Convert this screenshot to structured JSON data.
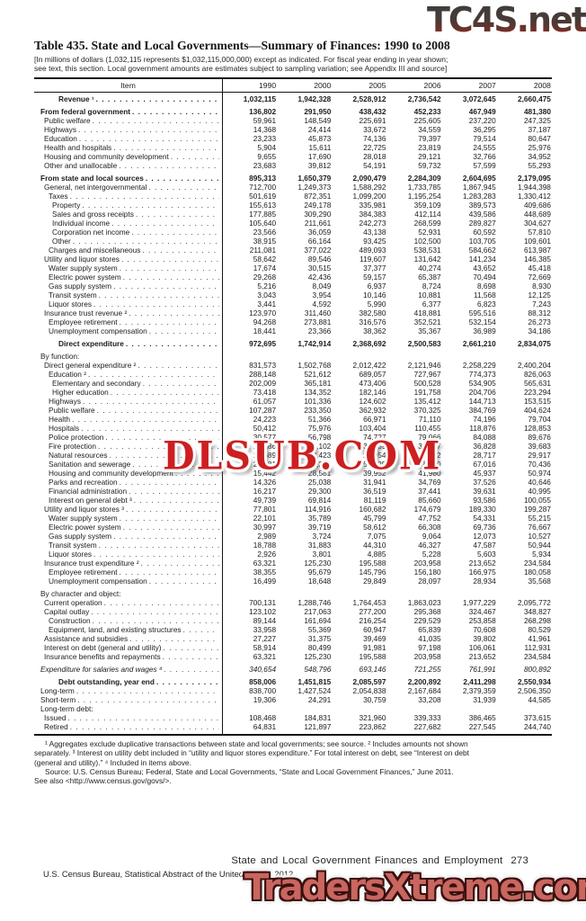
{
  "watermarks": {
    "top": "TC4S.net",
    "middle": "DLSUB.COM",
    "bottom": "TradersXtreme.com"
  },
  "title": "Table 435. State and Local Governments—Summary of Finances: 1990 to 2008",
  "note_lines": [
    "[In millions of dollars (1,032,115 represents $1,032,115,000,000) except as indicated. For fiscal year ending in year shown;",
    "see text, this section. Local government amounts are estimates subject to sampling variation; see Appendix III and source]"
  ],
  "table": {
    "item_header": "Item",
    "years": [
      "1990",
      "2000",
      "2005",
      "2006",
      "2007",
      "2008"
    ],
    "rows": [
      {
        "label": "Revenue ¹",
        "ind": 4,
        "style": "total",
        "values": [
          "1,032,115",
          "1,942,328",
          "2,528,912",
          "2,736,542",
          "3,072,645",
          "2,660,475"
        ]
      },
      {
        "label": "From federal government",
        "ind": 0,
        "style": "head",
        "gap": true,
        "values": [
          "136,802",
          "291,950",
          "438,432",
          "452,233",
          "467,949",
          "481,380"
        ]
      },
      {
        "label": "Public welfare",
        "ind": 1,
        "values": [
          "59,961",
          "148,549",
          "225,691",
          "225,605",
          "237,220",
          "247,325"
        ]
      },
      {
        "label": "Highways",
        "ind": 1,
        "values": [
          "14,368",
          "24,414",
          "33,672",
          "34,559",
          "36,295",
          "37,187"
        ]
      },
      {
        "label": "Education",
        "ind": 1,
        "values": [
          "23,233",
          "45,873",
          "74,136",
          "79,397",
          "79,514",
          "80,647"
        ]
      },
      {
        "label": "Health and hospitals",
        "ind": 1,
        "values": [
          "5,904",
          "15,611",
          "22,725",
          "23,819",
          "24,555",
          "25,976"
        ]
      },
      {
        "label": "Housing and community development",
        "ind": 1,
        "values": [
          "9,655",
          "17,690",
          "28,018",
          "29,121",
          "32,766",
          "34,952"
        ]
      },
      {
        "label": "Other and unallocable",
        "ind": 1,
        "values": [
          "23,683",
          "39,812",
          "54,191",
          "59,732",
          "57,599",
          "55,293"
        ]
      },
      {
        "label": "From state and local sources",
        "ind": 0,
        "style": "head",
        "gap": true,
        "values": [
          "895,313",
          "1,650,379",
          "2,090,479",
          "2,284,309",
          "2,604,695",
          "2,179,095"
        ]
      },
      {
        "label": "General, net intergovernmental",
        "ind": 1,
        "values": [
          "712,700",
          "1,249,373",
          "1,588,292",
          "1,733,785",
          "1,867,945",
          "1,944,398"
        ]
      },
      {
        "label": "Taxes",
        "ind": 2,
        "values": [
          "501,619",
          "872,351",
          "1,099,200",
          "1,195,254",
          "1,283,283",
          "1,330,412"
        ]
      },
      {
        "label": "Property",
        "ind": 3,
        "values": [
          "155,613",
          "249,178",
          "335,981",
          "359,109",
          "389,573",
          "409,686"
        ]
      },
      {
        "label": "Sales and gross receipts",
        "ind": 3,
        "values": [
          "177,885",
          "309,290",
          "384,383",
          "412,114",
          "439,586",
          "448,689"
        ]
      },
      {
        "label": "Individual income",
        "ind": 3,
        "values": [
          "105,640",
          "211,661",
          "242,273",
          "268,599",
          "289,827",
          "304,627"
        ]
      },
      {
        "label": "Corporation net income",
        "ind": 3,
        "values": [
          "23,566",
          "36,059",
          "43,138",
          "52,931",
          "60,592",
          "57,810"
        ]
      },
      {
        "label": "Other",
        "ind": 3,
        "values": [
          "38,915",
          "66,164",
          "93,425",
          "102,500",
          "103,705",
          "109,601"
        ]
      },
      {
        "label": "Charges and miscellaneous",
        "ind": 2,
        "values": [
          "211,081",
          "377,022",
          "489,093",
          "538,531",
          "584,662",
          "613,987"
        ]
      },
      {
        "label": "Utility and liquor stores",
        "ind": 1,
        "values": [
          "58,642",
          "89,546",
          "119,607",
          "131,642",
          "141,234",
          "146,385"
        ]
      },
      {
        "label": "Water supply system",
        "ind": 2,
        "values": [
          "17,674",
          "30,515",
          "37,377",
          "40,274",
          "43,652",
          "45,418"
        ]
      },
      {
        "label": "Electric power system",
        "ind": 2,
        "values": [
          "29,268",
          "42,436",
          "59,157",
          "65,387",
          "70,494",
          "72,669"
        ]
      },
      {
        "label": "Gas supply system",
        "ind": 2,
        "values": [
          "5,216",
          "8,049",
          "6,937",
          "8,724",
          "8,698",
          "8,930"
        ]
      },
      {
        "label": "Transit system",
        "ind": 2,
        "values": [
          "3,043",
          "3,954",
          "10,146",
          "10,881",
          "11,568",
          "12,125"
        ]
      },
      {
        "label": "Liquor stores",
        "ind": 2,
        "values": [
          "3,441",
          "4,592",
          "5,990",
          "6,377",
          "6,823",
          "7,243"
        ]
      },
      {
        "label": "Insurance trust revenue ²",
        "ind": 1,
        "values": [
          "123,970",
          "311,460",
          "382,580",
          "418,881",
          "595,516",
          "88,312"
        ]
      },
      {
        "label": "Employee retirement",
        "ind": 2,
        "values": [
          "94,268",
          "273,881",
          "316,576",
          "352,521",
          "532,154",
          "26,273"
        ]
      },
      {
        "label": "Unemployment compensation",
        "ind": 2,
        "values": [
          "18,441",
          "23,366",
          "38,362",
          "35,367",
          "36,989",
          "34,186"
        ]
      },
      {
        "label": "Direct expenditure",
        "ind": 4,
        "style": "total",
        "gap": true,
        "values": [
          "972,695",
          "1,742,914",
          "2,368,692",
          "2,500,583",
          "2,661,210",
          "2,834,075"
        ]
      },
      {
        "label": "By function:",
        "ind": 0,
        "style": "label",
        "gap": true
      },
      {
        "label": "Direct general expenditure ²",
        "ind": 1,
        "values": [
          "831,573",
          "1,502,768",
          "2,012,422",
          "2,121,946",
          "2,258,229",
          "2,400,204"
        ]
      },
      {
        "label": "Education ²",
        "ind": 2,
        "values": [
          "288,148",
          "521,612",
          "689,057",
          "727,967",
          "774,373",
          "826,063"
        ]
      },
      {
        "label": "Elementary and secondary",
        "ind": 3,
        "values": [
          "202,009",
          "365,181",
          "473,406",
          "500,528",
          "534,905",
          "565,631"
        ]
      },
      {
        "label": "Higher education",
        "ind": 3,
        "values": [
          "73,418",
          "134,352",
          "182,146",
          "191,758",
          "204,706",
          "223,294"
        ]
      },
      {
        "label": "Highways",
        "ind": 2,
        "values": [
          "61,057",
          "101,336",
          "124,602",
          "135,412",
          "144,713",
          "153,515"
        ]
      },
      {
        "label": "Public welfare",
        "ind": 2,
        "values": [
          "107,287",
          "233,350",
          "362,932",
          "370,325",
          "384,769",
          "404,624"
        ]
      },
      {
        "label": "Health",
        "ind": 2,
        "values": [
          "24,223",
          "51,366",
          "66,971",
          "71,110",
          "74,196",
          "79,704"
        ]
      },
      {
        "label": "Hospitals",
        "ind": 2,
        "values": [
          "50,412",
          "75,976",
          "103,404",
          "110,455",
          "118,876",
          "128,853"
        ]
      },
      {
        "label": "Police protection",
        "ind": 2,
        "values": [
          "30,577",
          "56,798",
          "74,727",
          "79,066",
          "84,088",
          "89,676"
        ]
      },
      {
        "label": "Fire protection",
        "ind": 2,
        "values": [
          "13,186",
          "23,102",
          "31,439",
          "34,167",
          "36,828",
          "39,683"
        ]
      },
      {
        "label": "Natural resources",
        "ind": 2,
        "values": [
          "15,689",
          "23,423",
          "26,954",
          "27,482",
          "28,717",
          "29,917"
        ]
      },
      {
        "label": "Sanitation and sewerage",
        "ind": 2,
        "values": [
          "23,981",
          "36,282",
          "56,925",
          "63,900",
          "67,016",
          "70,436"
        ]
      },
      {
        "label": "Housing and community development",
        "ind": 2,
        "values": [
          "15,442",
          "28,581",
          "39,952",
          "41,980",
          "45,937",
          "50,974"
        ]
      },
      {
        "label": "Parks and recreation",
        "ind": 2,
        "values": [
          "14,326",
          "25,038",
          "31,941",
          "34,769",
          "37,526",
          "40,646"
        ]
      },
      {
        "label": "Financial administration",
        "ind": 2,
        "values": [
          "16,217",
          "29,300",
          "36,519",
          "37,441",
          "39,631",
          "40,995"
        ]
      },
      {
        "label": "Interest on general debt ³",
        "ind": 2,
        "values": [
          "49,739",
          "69,814",
          "81,119",
          "85,660",
          "93,586",
          "100,055"
        ]
      },
      {
        "label": "Utility and liquor stores ³",
        "ind": 1,
        "values": [
          "77,801",
          "114,916",
          "160,682",
          "174,679",
          "189,330",
          "199,287"
        ]
      },
      {
        "label": "Water supply system",
        "ind": 2,
        "values": [
          "22,101",
          "35,789",
          "45,799",
          "47,752",
          "54,331",
          "55,215"
        ]
      },
      {
        "label": "Electric power system",
        "ind": 2,
        "values": [
          "30,997",
          "39,719",
          "58,612",
          "66,308",
          "69,736",
          "76,667"
        ]
      },
      {
        "label": "Gas supply system",
        "ind": 2,
        "values": [
          "2,989",
          "3,724",
          "7,075",
          "9,064",
          "12,073",
          "10,527"
        ]
      },
      {
        "label": "Transit system",
        "ind": 2,
        "values": [
          "18,788",
          "31,883",
          "44,310",
          "46,327",
          "47,587",
          "50,944"
        ]
      },
      {
        "label": "Liquor stores",
        "ind": 2,
        "values": [
          "2,926",
          "3,801",
          "4,885",
          "5,228",
          "5,603",
          "5,934"
        ]
      },
      {
        "label": "Insurance trust expenditure ²",
        "ind": 1,
        "values": [
          "63,321",
          "125,230",
          "195,588",
          "203,958",
          "213,652",
          "234,584"
        ]
      },
      {
        "label": "Employee retirement",
        "ind": 2,
        "values": [
          "38,355",
          "95,679",
          "145,796",
          "156,180",
          "166,975",
          "180,058"
        ]
      },
      {
        "label": "Unemployment compensation",
        "ind": 2,
        "values": [
          "16,499",
          "18,648",
          "29,849",
          "28,097",
          "28,934",
          "35,568"
        ]
      },
      {
        "label": "By character and object:",
        "ind": 0,
        "style": "label",
        "gap": true
      },
      {
        "label": "Current operation",
        "ind": 1,
        "values": [
          "700,131",
          "1,288,746",
          "1,764,453",
          "1,863,023",
          "1,977,229",
          "2,095,772"
        ]
      },
      {
        "label": "Capital outlay",
        "ind": 1,
        "values": [
          "123,102",
          "217,063",
          "277,200",
          "295,368",
          "324,467",
          "348,827"
        ]
      },
      {
        "label": "Construction",
        "ind": 2,
        "values": [
          "89,144",
          "161,694",
          "216,254",
          "229,529",
          "253,858",
          "268,298"
        ]
      },
      {
        "label": "Equipment, land, and existing structures",
        "ind": 2,
        "values": [
          "33,958",
          "55,369",
          "60,947",
          "65,839",
          "70,608",
          "80,529"
        ]
      },
      {
        "label": "Assistance and subsidies",
        "ind": 1,
        "values": [
          "27,227",
          "31,375",
          "39,469",
          "41,035",
          "39,802",
          "41,961"
        ]
      },
      {
        "label": "Interest on debt (general and utility)",
        "ind": 1,
        "values": [
          "58,914",
          "80,499",
          "91,981",
          "97,198",
          "106,061",
          "112,931"
        ]
      },
      {
        "label": "Insurance benefits and repayments",
        "ind": 1,
        "values": [
          "63,321",
          "125,230",
          "195,588",
          "203,958",
          "213,652",
          "234,584"
        ]
      },
      {
        "label": "Expenditure for salaries and wages ⁴",
        "ind": 0,
        "italic": true,
        "gap": true,
        "values": [
          "340,654",
          "548,796",
          "693,146",
          "721,255",
          "761,991",
          "800,892"
        ]
      },
      {
        "label": "Debt outstanding, year end",
        "ind": 4,
        "style": "total",
        "gap": true,
        "values": [
          "858,006",
          "1,451,815",
          "2,085,597",
          "2,200,892",
          "2,411,298",
          "2,550,934"
        ]
      },
      {
        "label": "Long-term",
        "ind": 0,
        "values": [
          "838,700",
          "1,427,524",
          "2,054,838",
          "2,167,684",
          "2,379,359",
          "2,506,350"
        ]
      },
      {
        "label": "Short-term",
        "ind": 0,
        "values": [
          "19,306",
          "24,291",
          "30,759",
          "33,208",
          "31,939",
          "44,585"
        ]
      },
      {
        "label": "Long-term debt:",
        "ind": 0,
        "style": "label"
      },
      {
        "label": "Issued",
        "ind": 1,
        "values": [
          "108,468",
          "184,831",
          "321,960",
          "339,333",
          "386,465",
          "373,615"
        ]
      },
      {
        "label": "Retired",
        "ind": 1,
        "values": [
          "64,831",
          "121,897",
          "223,862",
          "227,682",
          "227,545",
          "244,740"
        ]
      }
    ]
  },
  "footnote_lines": [
    {
      "text": "¹ Aggregates exclude duplicative transactions between state and local governments; see source. ² Includes amounts not shown",
      "indent": true
    },
    {
      "text": "separately. ³ Interest on utility debt included in “utility and liquor stores expenditure.” For total interest on debt, see “Interest on debt",
      "indent": false
    },
    {
      "text": "(general and utility).” ⁴ Included in items above.",
      "indent": false
    },
    {
      "text": "Source: U.S. Census Bureau; Federal, State and Local Governments, “State and Local Government Finances,” June 2011.",
      "indent": true
    },
    {
      "text": "See also <http://www.census.gov/govs/>.",
      "indent": false
    }
  ],
  "footer": {
    "running_head": "State and Local Government Finances and Employment",
    "page_number": "273",
    "credit": "U.S. Census Bureau, Statistical Abstract of the United States: 2012"
  }
}
